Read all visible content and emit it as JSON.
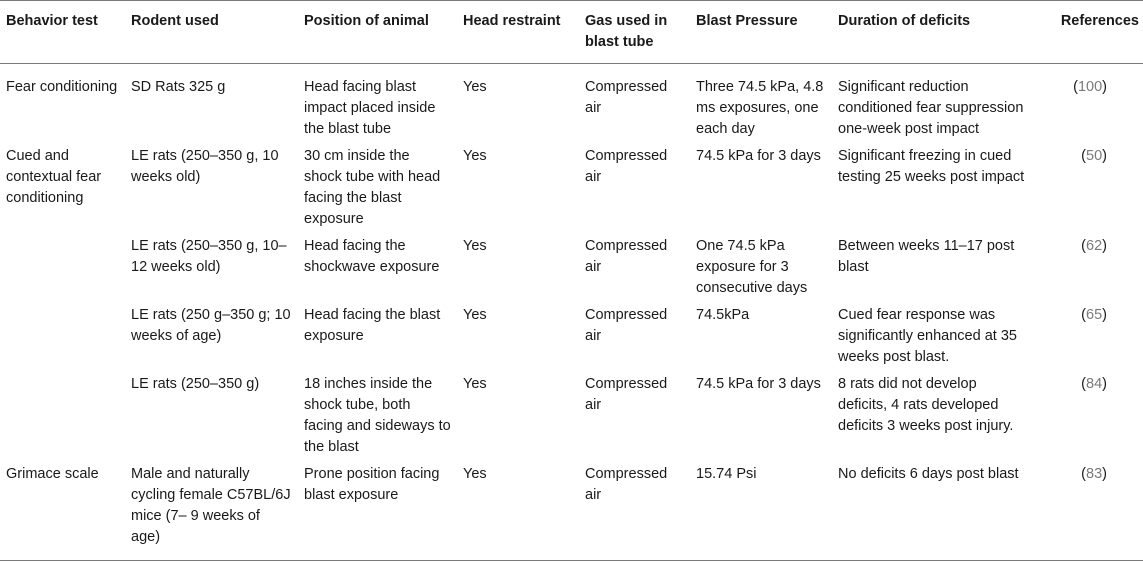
{
  "headers": [
    "Behavior test",
    "Rodent used",
    "Position of animal",
    "Head restraint",
    "Gas used in blast tube",
    "Blast Pressure",
    "Duration of deficits",
    "References"
  ],
  "rows": [
    {
      "test": "Fear conditioning",
      "rodent": "SD Rats 325 g",
      "position": "Head facing blast impact placed inside the blast tube",
      "restraint": "Yes",
      "gas": "Compressed air",
      "pressure": "Three 74.5 kPa, 4.8 ms exposures, one each day",
      "duration": "Significant reduction conditioned fear suppression one-week post impact",
      "ref": "100"
    },
    {
      "test": "Cued and contextual fear conditioning",
      "rodent": "LE rats (250–350 g, 10 weeks old)",
      "position": "30 cm inside the shock tube with head facing the blast exposure",
      "restraint": "Yes",
      "gas": "Compressed air",
      "pressure": "74.5 kPa for 3 days",
      "duration": "Significant freezing in cued testing 25 weeks post impact",
      "ref": "50"
    },
    {
      "test": "",
      "rodent": "LE rats (250–350 g, 10–12 weeks old)",
      "position": "Head facing the shockwave exposure",
      "restraint": "Yes",
      "gas": "Compressed air",
      "pressure": "One 74.5 kPa exposure for 3 consecutive days",
      "duration": "Between weeks 11–17 post blast",
      "ref": "62"
    },
    {
      "test": "",
      "rodent": "LE rats (250 g–350 g; 10 weeks of age)",
      "position": "Head facing the blast exposure",
      "restraint": "Yes",
      "gas": "Compressed air",
      "pressure": "74.5kPa",
      "duration": "Cued fear response was significantly enhanced at 35 weeks post blast.",
      "ref": "65"
    },
    {
      "test": "",
      "rodent": "LE rats (250–350 g)",
      "position": "18 inches inside the shock tube, both facing and sideways to the blast",
      "restraint": "Yes",
      "gas": "Compressed air",
      "pressure": "74.5 kPa for 3 days",
      "duration": "8 rats did not develop deficits, 4 rats developed deficits 3 weeks post injury.",
      "ref": "84"
    },
    {
      "test": "Grimace scale",
      "rodent": "Male and naturally cycling female C57BL/6J mice (7– 9 weeks of age)",
      "position": "Prone position facing blast exposure",
      "restraint": "Yes",
      "gas": "Compressed air",
      "pressure": "15.74 Psi",
      "duration": "No deficits 6 days post blast",
      "ref": "83"
    }
  ]
}
